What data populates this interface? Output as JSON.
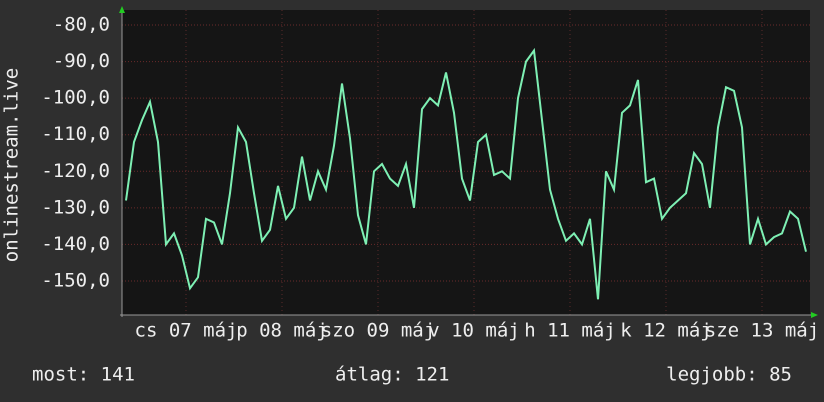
{
  "chart_data": {
    "type": "line",
    "y_label": "onlinestream.live",
    "xlim": [
      0,
      172
    ],
    "xticks": [
      {
        "value": 16,
        "label": "cs 07 máj"
      },
      {
        "value": 40,
        "label": "p 08 máj"
      },
      {
        "value": 64,
        "label": "szo 09 máj"
      },
      {
        "value": 88,
        "label": "v 10 máj"
      },
      {
        "value": 112,
        "label": "h 11 máj"
      },
      {
        "value": 136,
        "label": "k 12 máj"
      },
      {
        "value": 160,
        "label": "sze 13 máj"
      }
    ],
    "ylim": [
      -159.3,
      -75.9
    ],
    "yticks": [
      {
        "value": -150,
        "label": "-150,0"
      },
      {
        "value": -140,
        "label": "-140,0"
      },
      {
        "value": -130,
        "label": "-130,0"
      },
      {
        "value": -120,
        "label": "-120,0"
      },
      {
        "value": -110,
        "label": "-110,0"
      },
      {
        "value": -100,
        "label": "-100,0"
      },
      {
        "value": -90,
        "label": "-90,0"
      },
      {
        "value": -80,
        "label": "-80,0"
      }
    ],
    "grid": true,
    "x": [
      1,
      3,
      5,
      7,
      9,
      11,
      13,
      15,
      17,
      19,
      21,
      23,
      25,
      27,
      29,
      31,
      33,
      35,
      37,
      39,
      41,
      43,
      45,
      47,
      49,
      51,
      53,
      55,
      57,
      59,
      61,
      63,
      65,
      67,
      69,
      71,
      73,
      75,
      77,
      79,
      81,
      83,
      85,
      87,
      89,
      91,
      93,
      95,
      97,
      99,
      101,
      103,
      105,
      107,
      109,
      111,
      113,
      115,
      117,
      119,
      121,
      123,
      125,
      127,
      129,
      131,
      133,
      135,
      137,
      139,
      141,
      143,
      145,
      147,
      149,
      151,
      153,
      155,
      157,
      159,
      161,
      163,
      165,
      167,
      169,
      171
    ],
    "series": [
      {
        "color": "#7ef0b4",
        "values": [
          -128,
          -112,
          -106,
          -101,
          -112,
          -140,
          -137,
          -143,
          -152,
          -149,
          -133,
          -134,
          -140,
          -126,
          -108,
          -112,
          -126,
          -139,
          -136,
          -124,
          -133,
          -130,
          -116,
          -128,
          -120,
          -125,
          -113,
          -96,
          -111,
          -132,
          -140,
          -120,
          -118,
          -122,
          -124,
          -118,
          -130,
          -103,
          -100,
          -102,
          -93,
          -104,
          -122,
          -128,
          -112,
          -110,
          -121,
          -120,
          -122,
          -100,
          -90,
          -87,
          -106,
          -125,
          -133,
          -139,
          -137,
          -140,
          -133,
          -155,
          -120,
          -125,
          -104,
          -102,
          -95,
          -123,
          -122,
          -133,
          -130,
          -128,
          -126,
          -115,
          -118,
          -130,
          -108,
          -97,
          -98,
          -108,
          -140,
          -133,
          -140,
          -138,
          -137,
          -131,
          -133,
          -142
        ]
      }
    ]
  },
  "footer": {
    "current": "most: 141",
    "average": "átlag: 121",
    "best": "legjobb: 85"
  }
}
